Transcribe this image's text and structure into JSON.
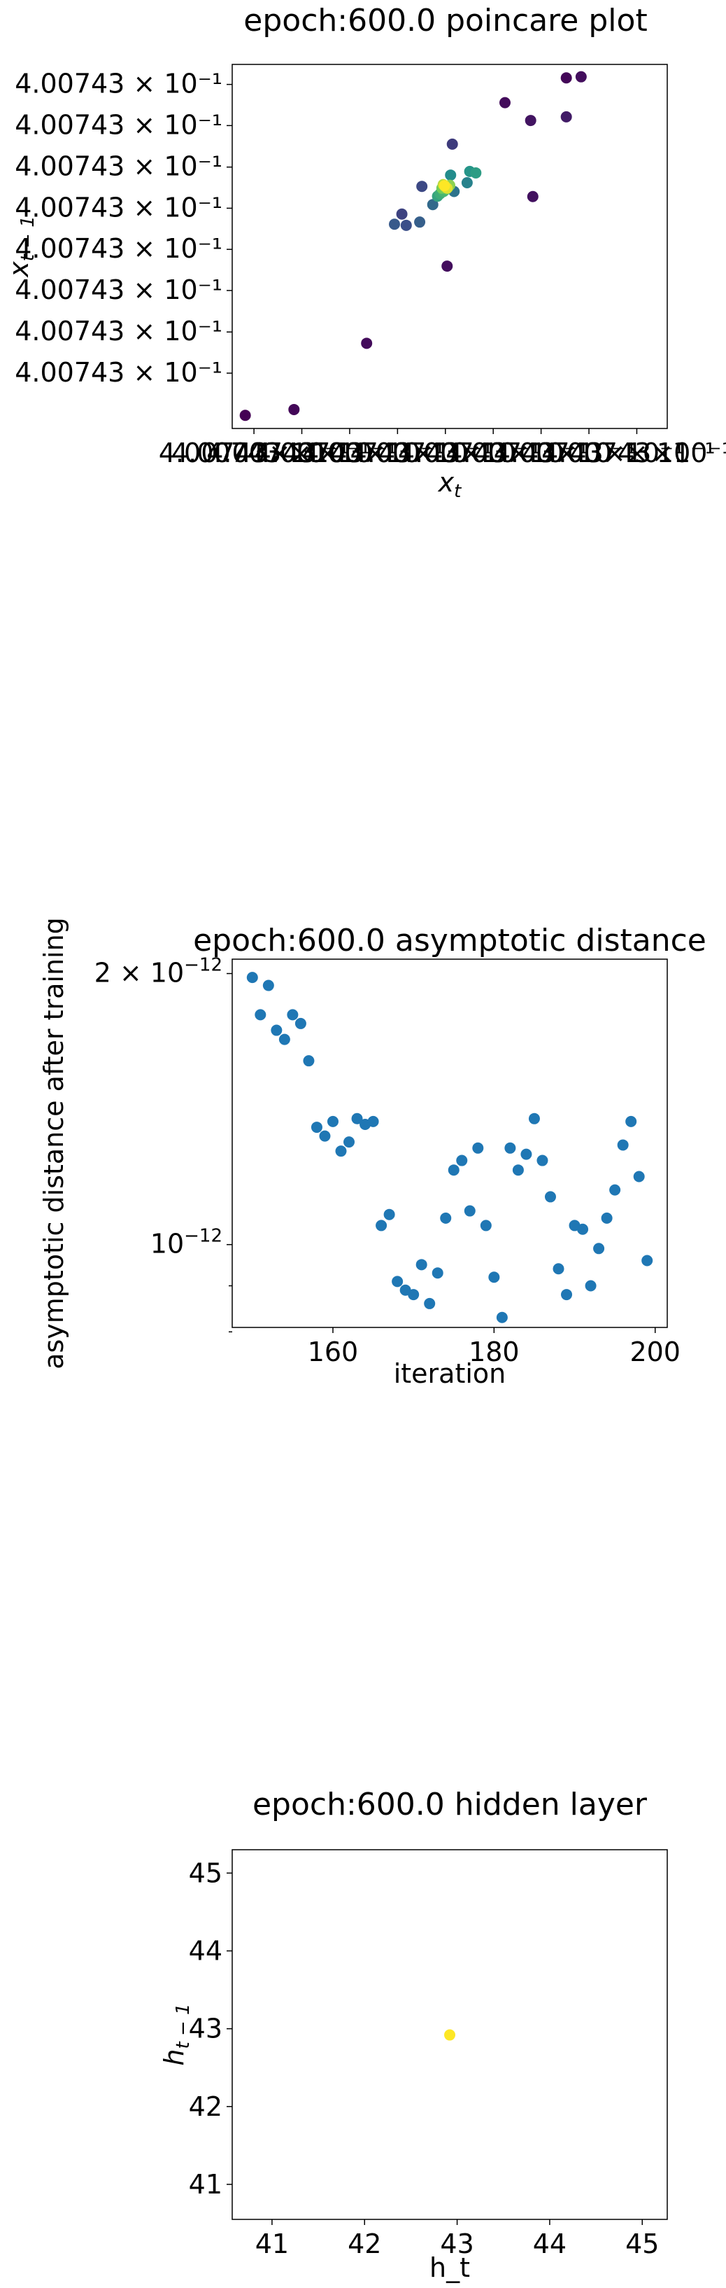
{
  "chart_data": [
    {
      "type": "scatter",
      "title": "epoch:600.0 poincare plot",
      "xlabel": "x_t",
      "ylabel": "x_{t-1}",
      "color_scale": "viridis",
      "xlim": [
        0.0,
        1.0
      ],
      "ylim": [
        0.0,
        1.0
      ],
      "y_tick_labels": [
        "4.00743 × 10⁻¹",
        "4.00743 × 10⁻¹",
        "4.00743 × 10⁻¹",
        "4.00743 × 10⁻¹",
        "4.00743 × 10⁻¹",
        "4.00743 × 10⁻¹",
        "4.00743 × 10⁻¹",
        "4.00743 × 10⁻¹"
      ],
      "y_tick_values": [
        0.945,
        0.832,
        0.718,
        0.605,
        0.492,
        0.379,
        0.265,
        0.152
      ],
      "x_tick_labels": [
        "4.00743×10⁻¹",
        "4.00743×10⁻¹",
        "4.00743×10⁻¹",
        "4.00743×10⁻¹",
        "4.00743×10⁻¹",
        "4.00743×10⁻¹",
        "4.00743×10⁻¹",
        "4.00743×10⁻¹",
        "4.00743×10⁻¹"
      ],
      "x_tick_values": [
        0.05,
        0.16,
        0.27,
        0.38,
        0.49,
        0.6,
        0.71,
        0.82,
        0.93
      ],
      "x_axis_text": "4.00743 ×10⁻¹",
      "x_axis_text_right": "× 10⁻¹",
      "points": [
        {
          "x": 0.03,
          "y": 0.036,
          "c": 0.0
        },
        {
          "x": 0.142,
          "y": 0.052,
          "c": 0.02
        },
        {
          "x": 0.309,
          "y": 0.234,
          "c": 0.03
        },
        {
          "x": 0.494,
          "y": 0.446,
          "c": 0.04
        },
        {
          "x": 0.691,
          "y": 0.637,
          "c": 0.05
        },
        {
          "x": 0.627,
          "y": 0.895,
          "c": 0.03
        },
        {
          "x": 0.686,
          "y": 0.846,
          "c": 0.06
        },
        {
          "x": 0.768,
          "y": 0.963,
          "c": 0.02
        },
        {
          "x": 0.802,
          "y": 0.966,
          "c": 0.04
        },
        {
          "x": 0.768,
          "y": 0.856,
          "c": 0.08
        },
        {
          "x": 0.39,
          "y": 0.589,
          "c": 0.2
        },
        {
          "x": 0.4,
          "y": 0.558,
          "c": 0.24
        },
        {
          "x": 0.373,
          "y": 0.561,
          "c": 0.28
        },
        {
          "x": 0.431,
          "y": 0.567,
          "c": 0.3
        },
        {
          "x": 0.436,
          "y": 0.665,
          "c": 0.22
        },
        {
          "x": 0.506,
          "y": 0.781,
          "c": 0.18
        },
        {
          "x": 0.461,
          "y": 0.615,
          "c": 0.34
        },
        {
          "x": 0.51,
          "y": 0.651,
          "c": 0.38
        },
        {
          "x": 0.54,
          "y": 0.675,
          "c": 0.44
        },
        {
          "x": 0.502,
          "y": 0.696,
          "c": 0.48
        },
        {
          "x": 0.546,
          "y": 0.706,
          "c": 0.52
        },
        {
          "x": 0.56,
          "y": 0.702,
          "c": 0.55
        },
        {
          "x": 0.472,
          "y": 0.638,
          "c": 0.58
        },
        {
          "x": 0.478,
          "y": 0.645,
          "c": 0.62
        },
        {
          "x": 0.486,
          "y": 0.651,
          "c": 0.66
        },
        {
          "x": 0.492,
          "y": 0.657,
          "c": 0.7
        },
        {
          "x": 0.496,
          "y": 0.662,
          "c": 0.74
        },
        {
          "x": 0.482,
          "y": 0.66,
          "c": 0.78
        },
        {
          "x": 0.5,
          "y": 0.668,
          "c": 0.82
        },
        {
          "x": 0.489,
          "y": 0.664,
          "c": 0.86
        },
        {
          "x": 0.485,
          "y": 0.67,
          "c": 0.9
        },
        {
          "x": 0.494,
          "y": 0.66,
          "c": 0.95
        },
        {
          "x": 0.488,
          "y": 0.667,
          "c": 1.0
        }
      ]
    },
    {
      "type": "scatter",
      "title": "epoch:600.0 asymptotic distance",
      "xlabel": "iteration",
      "ylabel": "asymptotic distance after training",
      "y_scale": "log",
      "xlim": [
        147.5,
        201.5
      ],
      "ylim_log10": [
        -12.092,
        -11.683
      ],
      "x_ticks": [
        160,
        180,
        200
      ],
      "y_tick_labels": [
        {
          "value": 2e-12,
          "text_base": "2 × 10",
          "text_exp": "−12"
        },
        {
          "value": 1e-12,
          "text_base": "10",
          "text_exp": "−12"
        }
      ],
      "series_color": "#1f77b4",
      "x": [
        150,
        151,
        152,
        153,
        154,
        155,
        156,
        157,
        158,
        159,
        160,
        161,
        162,
        163,
        164,
        165,
        166,
        167,
        168,
        169,
        170,
        171,
        172,
        173,
        174,
        175,
        176,
        177,
        178,
        179,
        180,
        181,
        182,
        183,
        184,
        185,
        186,
        187,
        188,
        189,
        190,
        191,
        192,
        193,
        194,
        195,
        196,
        197,
        198,
        199
      ],
      "y": [
        1.98e-12,
        1.8e-12,
        1.94e-12,
        1.73e-12,
        1.69e-12,
        1.8e-12,
        1.76e-12,
        1.6e-12,
        1.35e-12,
        1.32e-12,
        1.37e-12,
        1.27e-12,
        1.3e-12,
        1.38e-12,
        1.36e-12,
        1.37e-12,
        1.05e-12,
        1.08e-12,
        9.1e-13,
        8.9e-13,
        8.8e-13,
        9.5e-13,
        8.6e-13,
        9.3e-13,
        1.07e-12,
        1.21e-12,
        1.24e-12,
        1.09e-12,
        1.28e-12,
        1.05e-12,
        9.2e-13,
        8.3e-13,
        1.28e-12,
        1.21e-12,
        1.26e-12,
        1.38e-12,
        1.24e-12,
        1.13e-12,
        9.4e-13,
        8.8e-13,
        1.05e-12,
        1.04e-12,
        9e-13,
        9.9e-13,
        1.07e-12,
        1.15e-12,
        1.29e-12,
        1.37e-12,
        1.19e-12,
        9.6e-13
      ]
    },
    {
      "type": "scatter",
      "title": "epoch:600.0 hidden layer",
      "xlabel": "h_t",
      "ylabel": "h_{t-1}",
      "xlim": [
        40.57,
        45.27
      ],
      "ylim": [
        40.55,
        45.3
      ],
      "x_ticks": [
        41,
        42,
        43,
        44,
        45
      ],
      "y_ticks": [
        41,
        42,
        43,
        44,
        45
      ],
      "points": [
        {
          "x": 42.92,
          "y": 42.92,
          "color": "#fde725"
        }
      ]
    }
  ]
}
